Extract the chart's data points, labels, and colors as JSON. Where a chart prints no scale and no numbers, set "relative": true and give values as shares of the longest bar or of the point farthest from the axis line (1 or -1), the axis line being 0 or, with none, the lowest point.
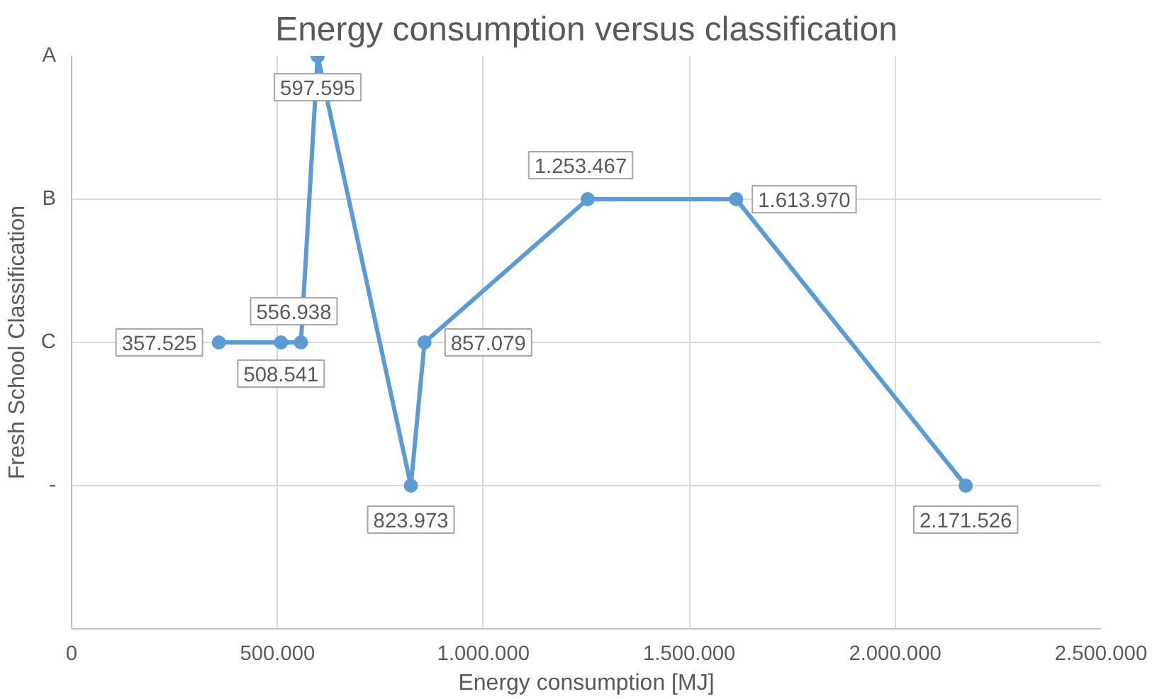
{
  "chart_data": {
    "type": "line",
    "title": "Energy consumption versus classification",
    "xlabel": "Energy consumption [MJ]",
    "ylabel": "Fresh School Classification",
    "x": [
      357525,
      508541,
      556938,
      597595,
      823973,
      857079,
      1253467,
      1613970,
      2171526
    ],
    "series": [
      {
        "color": "#5b9bd5",
        "values": [
          0.5,
          0.5,
          0.5,
          1,
          0.25,
          0.5,
          0.75,
          0.75,
          0.25
        ]
      }
    ],
    "relative": true,
    "y_categories": [
      "A",
      "B",
      "C",
      "-",
      null
    ],
    "xlim": [
      0,
      2500000
    ],
    "xticks": [
      0,
      {
        "value": 500000,
        "label": "500.000"
      },
      {
        "value": 1000000,
        "label": "1.000.000"
      },
      {
        "value": 1500000,
        "label": "1.500.000"
      },
      {
        "value": 2000000,
        "label": "2.000.000"
      },
      {
        "value": 2500000,
        "label": "2.500.000"
      }
    ],
    "annotations": [
      {
        "text": "357.525",
        "x": 357525,
        "y": 0.5
      },
      {
        "text": "508.541",
        "x": 508541,
        "y": 0.5
      },
      {
        "text": "556.938",
        "x": 556938,
        "y": 0.5
      },
      {
        "text": "597.595",
        "x": 597595,
        "y": 1
      },
      {
        "text": "823.973",
        "x": 823973,
        "y": 0.25
      },
      {
        "text": "857.079",
        "x": 857079,
        "y": 0.5
      },
      {
        "text": "1.253.467",
        "x": 1253467,
        "y": 0.75
      },
      {
        "text": "1.613.970",
        "x": 1613970,
        "y": 0.75
      },
      {
        "text": "2.171.526",
        "x": 2171526,
        "y": 0.25
      }
    ],
    "grid": true,
    "marker": "circle",
    "line_style": "solid"
  }
}
